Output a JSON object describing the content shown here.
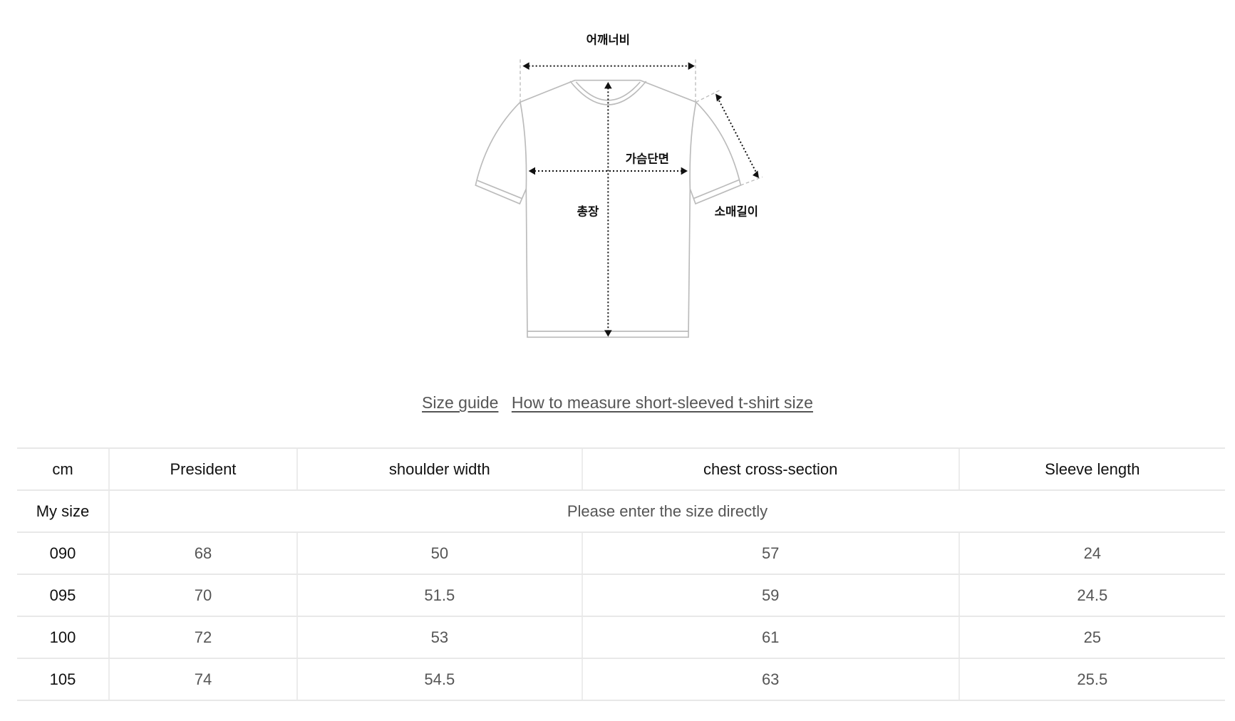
{
  "diagram": {
    "shoulder_label": "어깨너비",
    "chest_label": "가슴단면",
    "length_label": "총장",
    "sleeve_label": "소매길이"
  },
  "links": {
    "size_guide": "Size guide",
    "how_to_measure": "How to measure short-sleeved t-shirt size"
  },
  "table": {
    "headers": [
      "cm",
      "President",
      "shoulder width",
      "chest cross-section",
      "Sleeve length"
    ],
    "my_size": {
      "label": "My size",
      "placeholder": "Please enter the size directly"
    },
    "rows": [
      [
        "090",
        "68",
        "50",
        "57",
        "24"
      ],
      [
        "095",
        "70",
        "51.5",
        "59",
        "24.5"
      ],
      [
        "100",
        "72",
        "53",
        "61",
        "25"
      ],
      [
        "105",
        "74",
        "54.5",
        "63",
        "25.5"
      ]
    ]
  }
}
